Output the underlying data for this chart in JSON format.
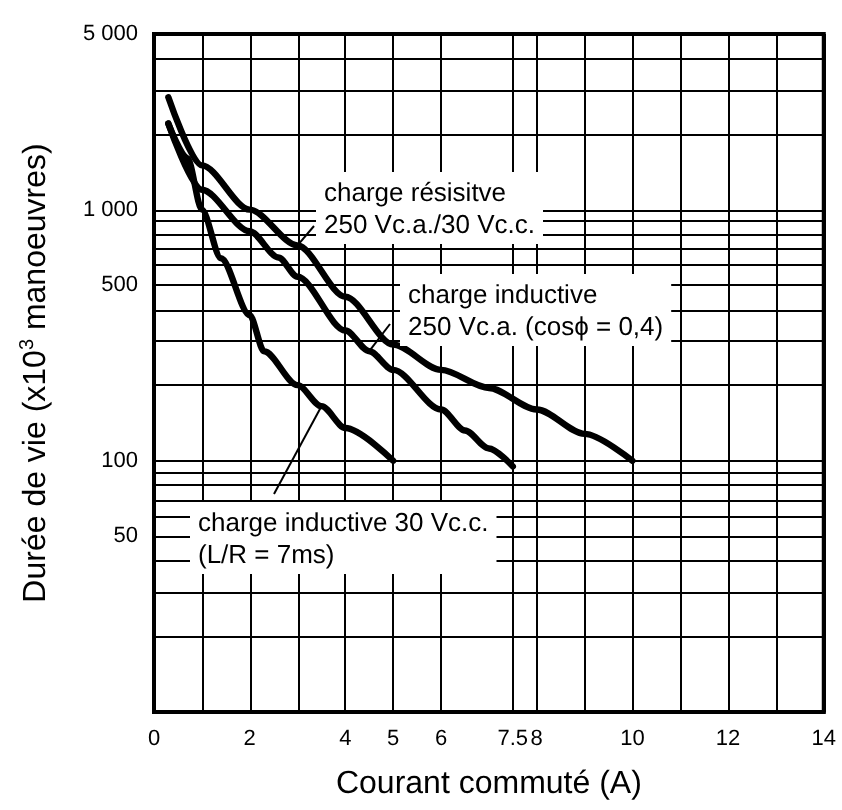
{
  "chart_data": {
    "type": "line",
    "ylabel": "Durée de vie (x10$^{3}$ manoeuvres)",
    "xlabel": "Courant commuté (A)",
    "xlim": [
      0,
      14
    ],
    "xticks": [
      0,
      {
        "value": 1,
        "label": null
      },
      2,
      {
        "value": 3,
        "label": null
      },
      4,
      5,
      6,
      7.5,
      8,
      {
        "value": 9,
        "label": null
      },
      10,
      {
        "value": 11,
        "label": null
      },
      12,
      {
        "value": 13,
        "label": null
      },
      14
    ],
    "ylim": [
      10,
      5000
    ],
    "log": "y",
    "yticks": [
      {
        "value": 10,
        "label": null
      },
      {
        "value": 20,
        "label": null
      },
      {
        "value": 30,
        "label": null
      },
      {
        "value": 40,
        "label": null
      },
      50,
      {
        "value": 60,
        "label": null
      },
      {
        "value": 70,
        "label": null
      },
      {
        "value": 80,
        "label": null
      },
      {
        "value": 90,
        "label": null
      },
      100,
      {
        "value": 200,
        "label": null
      },
      {
        "value": 300,
        "label": null
      },
      {
        "value": 400,
        "label": null
      },
      500,
      {
        "value": 600,
        "label": null
      },
      {
        "value": 700,
        "label": null
      },
      {
        "value": 800,
        "label": null
      },
      {
        "value": 900,
        "label": null
      },
      {
        "value": 1000,
        "label": "1 000"
      },
      {
        "value": 2000,
        "label": null
      },
      {
        "value": 3000,
        "label": null
      },
      {
        "value": 4000,
        "label": null
      },
      {
        "value": 5000,
        "label": "5 000"
      }
    ],
    "grid": true,
    "legend": false,
    "marker": "none",
    "line_style": "solid",
    "series": [
      {
        "color": "#000000",
        "x": [
          0.3,
          1,
          2,
          3,
          4,
          5,
          6,
          7,
          8,
          9,
          10
        ],
        "values": [
          2800,
          1500,
          1000,
          720,
          450,
          290,
          230,
          195,
          160,
          128,
          100
        ]
      },
      {
        "color": "#000000",
        "x": [
          0.3,
          1,
          2,
          2.6,
          3,
          4,
          4.5,
          5,
          6,
          6.5,
          7,
          7.5
        ],
        "values": [
          2200,
          1200,
          820,
          645,
          540,
          330,
          273,
          230,
          160,
          132,
          112,
          95
        ]
      },
      {
        "color": "#000000",
        "x": [
          0.3,
          0.7,
          1,
          1.4,
          2,
          2.3,
          3,
          3.5,
          4,
          5
        ],
        "values": [
          2200,
          1600,
          1000,
          640,
          380,
          273,
          200,
          165,
          135,
          100
        ]
      }
    ],
    "annotations": [
      {
        "text": "charge résisitve\n250 Vc.a./30 Vc.c.",
        "x": 3,
        "y": 720
      },
      {
        "text": "charge inductive\n250 Vc.a. (cosϕ = 0,4)",
        "x": 4.5,
        "y": 273
      },
      {
        "text": "charge inductive 30 Vc.c.\n(L/R = 7ms)",
        "x": 3.5,
        "y": 165
      }
    ]
  }
}
